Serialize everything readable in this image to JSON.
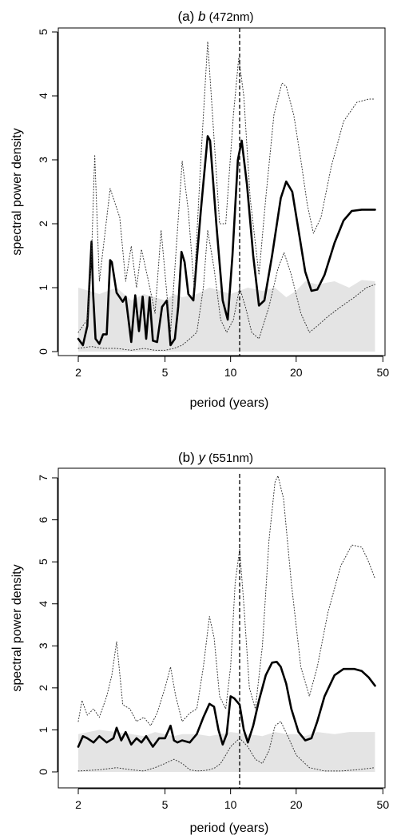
{
  "chart_data": [
    {
      "type": "line",
      "title_prefix": "(a) ",
      "title_var": "b",
      "title_suffix": " (472nm)",
      "xlabel": "period (years)",
      "ylabel": "spectral power density",
      "x_scale": "log",
      "xlim": [
        2,
        47
      ],
      "ylim": [
        0,
        5
      ],
      "x_ticks": [
        2,
        5,
        10,
        20,
        50
      ],
      "x_tick_labels": [
        "2",
        "5",
        "10",
        "20",
        "50"
      ],
      "y_ticks": [
        0,
        1,
        2,
        3,
        4,
        5
      ],
      "y_tick_labels": [
        "0",
        "1",
        "2",
        "3",
        "4",
        "5"
      ],
      "vline_x": 11,
      "series": [
        {
          "style": "solid",
          "x": [
            2.0,
            2.1,
            2.2,
            2.3,
            2.34,
            2.4,
            2.5,
            2.6,
            2.7,
            2.8,
            2.85,
            3.0,
            3.2,
            3.3,
            3.5,
            3.65,
            3.8,
            3.95,
            4.1,
            4.25,
            4.4,
            4.6,
            4.85,
            5.1,
            5.3,
            5.55,
            5.75,
            5.95,
            6.15,
            6.4,
            6.75,
            7.3,
            7.85,
            8.05,
            8.6,
            9.2,
            9.7,
            10.2,
            10.8,
            11.25,
            11.9,
            12.7,
            13.5,
            14.3,
            15.5,
            17.0,
            18.0,
            19.2,
            20.5,
            22.0,
            23.5,
            25.0,
            27.0,
            30.0,
            33.0,
            36.0,
            40.0,
            43.0,
            46.0
          ],
          "y": [
            0.2,
            0.1,
            0.4,
            1.72,
            0.9,
            0.2,
            0.12,
            0.27,
            0.27,
            1.43,
            1.4,
            0.92,
            0.78,
            0.86,
            0.15,
            0.88,
            0.32,
            0.86,
            0.2,
            0.85,
            0.17,
            0.15,
            0.7,
            0.8,
            0.1,
            0.2,
            0.7,
            1.56,
            1.4,
            0.9,
            0.8,
            2.2,
            3.37,
            3.3,
            2.0,
            0.8,
            0.5,
            1.5,
            3.0,
            3.3,
            2.6,
            1.5,
            0.72,
            0.8,
            1.5,
            2.4,
            2.66,
            2.5,
            1.9,
            1.25,
            0.95,
            0.97,
            1.2,
            1.7,
            2.05,
            2.2,
            2.22,
            2.22,
            2.22
          ]
        },
        {
          "style": "dotted-upper",
          "x": [
            2.0,
            2.2,
            2.3,
            2.38,
            2.5,
            2.8,
            3.1,
            3.3,
            3.5,
            3.7,
            3.9,
            4.2,
            4.5,
            4.8,
            5.1,
            5.3,
            5.6,
            6.0,
            6.4,
            6.8,
            7.3,
            7.85,
            8.3,
            8.9,
            9.5,
            10.3,
            10.9,
            11.5,
            12.3,
            13.5,
            14.5,
            15.8,
            17.2,
            18.0,
            19.5,
            21.0,
            22.5,
            24.0,
            26.0,
            29.0,
            33.0,
            38.0,
            43.0,
            46.0
          ],
          "y": [
            0.3,
            0.5,
            1.5,
            3.08,
            1.1,
            2.55,
            2.1,
            1.1,
            1.65,
            1.0,
            1.6,
            1.1,
            0.6,
            1.9,
            0.9,
            0.3,
            1.5,
            2.98,
            2.2,
            1.0,
            3.0,
            4.85,
            3.6,
            2.0,
            2.0,
            3.7,
            4.6,
            4.0,
            2.4,
            1.2,
            2.4,
            3.7,
            4.2,
            4.15,
            3.7,
            3.0,
            2.3,
            1.85,
            2.1,
            2.9,
            3.6,
            3.9,
            3.95,
            3.95
          ]
        },
        {
          "style": "dotted-lower",
          "x": [
            2.0,
            2.3,
            2.6,
            3.0,
            3.5,
            4.0,
            4.5,
            5.0,
            5.5,
            6.0,
            6.5,
            7.0,
            7.5,
            7.85,
            8.4,
            9.0,
            9.6,
            10.3,
            11.0,
            11.7,
            12.5,
            13.5,
            15.0,
            16.5,
            17.6,
            19.0,
            21.0,
            23.0,
            25.0,
            28.0,
            32.0,
            37.0,
            42.0,
            46.0
          ],
          "y": [
            0.05,
            0.08,
            0.05,
            0.05,
            0.02,
            0.05,
            0.02,
            0.02,
            0.05,
            0.1,
            0.2,
            0.3,
            1.0,
            1.9,
            1.3,
            0.5,
            0.3,
            0.5,
            1.0,
            0.7,
            0.3,
            0.2,
            0.7,
            1.3,
            1.55,
            1.2,
            0.6,
            0.3,
            0.4,
            0.55,
            0.7,
            0.85,
            1.0,
            1.05
          ]
        }
      ],
      "band": {
        "x": [
          2.0,
          2.5,
          3.0,
          3.5,
          4.0,
          4.5,
          5.0,
          5.5,
          6.0,
          7.0,
          8.0,
          9.0,
          10.0,
          12.0,
          14.0,
          16.0,
          18.0,
          20.0,
          22.0,
          25.0,
          30.0,
          35.0,
          40.0,
          46.0
        ],
        "y": [
          1.0,
          0.9,
          1.0,
          0.8,
          0.9,
          0.85,
          0.8,
          0.9,
          0.85,
          0.9,
          1.0,
          0.95,
          0.9,
          1.0,
          0.95,
          1.0,
          0.85,
          0.95,
          1.1,
          1.05,
          1.1,
          1.0,
          1.12,
          1.1
        ]
      }
    },
    {
      "type": "line",
      "title_prefix": "(b) ",
      "title_var": "y",
      "title_suffix": " (551nm)",
      "xlabel": "period (years)",
      "ylabel": "spectral power density",
      "x_scale": "log",
      "xlim": [
        2,
        47
      ],
      "ylim": [
        0,
        7
      ],
      "x_ticks": [
        2,
        5,
        10,
        20,
        50
      ],
      "x_tick_labels": [
        "2",
        "5",
        "10",
        "20",
        "50"
      ],
      "y_ticks": [
        0,
        1,
        2,
        3,
        4,
        5,
        6,
        7
      ],
      "y_tick_labels": [
        "0",
        "1",
        "2",
        "3",
        "4",
        "5",
        "6",
        "7"
      ],
      "vline_x": 11,
      "series": [
        {
          "style": "solid",
          "x": [
            2.0,
            2.1,
            2.2,
            2.35,
            2.5,
            2.7,
            2.9,
            3.0,
            3.15,
            3.3,
            3.5,
            3.7,
            3.9,
            4.1,
            4.4,
            4.7,
            5.0,
            5.3,
            5.5,
            5.7,
            6.0,
            6.5,
            7.0,
            7.5,
            8.0,
            8.4,
            8.8,
            9.2,
            9.6,
            10.0,
            10.4,
            11.0,
            11.5,
            12.0,
            12.7,
            13.5,
            14.5,
            15.5,
            16.3,
            17.0,
            18.0,
            19.0,
            20.5,
            22.0,
            23.5,
            25.0,
            27.0,
            30.0,
            33.0,
            37.0,
            40.0,
            43.0,
            46.0
          ],
          "y": [
            0.6,
            0.85,
            0.8,
            0.7,
            0.85,
            0.7,
            0.8,
            1.05,
            0.75,
            0.95,
            0.65,
            0.8,
            0.7,
            0.85,
            0.6,
            0.8,
            0.8,
            1.1,
            0.75,
            0.7,
            0.75,
            0.7,
            0.9,
            1.3,
            1.62,
            1.55,
            1.0,
            0.65,
            0.9,
            1.8,
            1.75,
            1.6,
            1.0,
            0.7,
            1.1,
            1.7,
            2.3,
            2.6,
            2.62,
            2.5,
            2.1,
            1.5,
            0.95,
            0.75,
            0.8,
            1.2,
            1.8,
            2.3,
            2.45,
            2.45,
            2.4,
            2.25,
            2.05
          ]
        },
        {
          "style": "dotted-upper",
          "x": [
            2.0,
            2.08,
            2.2,
            2.35,
            2.5,
            2.7,
            2.85,
            3.0,
            3.2,
            3.45,
            3.7,
            4.0,
            4.3,
            4.6,
            5.0,
            5.3,
            5.6,
            6.0,
            6.5,
            7.0,
            7.5,
            8.0,
            8.4,
            8.9,
            9.5,
            10.0,
            10.5,
            11.0,
            11.5,
            12.2,
            13.0,
            14.0,
            15.0,
            16.0,
            16.5,
            17.5,
            19.0,
            21.0,
            23.0,
            25.0,
            28.0,
            32.0,
            36.0,
            40.0,
            43.0,
            46.0
          ],
          "y": [
            1.2,
            1.7,
            1.35,
            1.5,
            1.3,
            1.8,
            2.3,
            3.1,
            1.6,
            1.5,
            1.2,
            1.3,
            1.1,
            1.4,
            2.0,
            2.5,
            1.8,
            1.2,
            1.4,
            1.5,
            2.5,
            3.7,
            3.2,
            1.8,
            1.5,
            2.5,
            4.5,
            5.3,
            4.0,
            2.0,
            1.5,
            3.0,
            5.5,
            6.9,
            7.05,
            6.5,
            4.5,
            2.5,
            1.8,
            2.5,
            3.8,
            4.9,
            5.4,
            5.35,
            5.0,
            4.6
          ]
        },
        {
          "style": "dotted-lower",
          "x": [
            2.0,
            2.5,
            3.0,
            3.5,
            4.0,
            4.5,
            5.0,
            5.5,
            6.0,
            6.5,
            7.0,
            7.5,
            8.0,
            8.5,
            9.0,
            9.5,
            10.0,
            11.0,
            12.0,
            13.0,
            14.0,
            15.0,
            16.0,
            17.0,
            18.5,
            20.0,
            23.0,
            27.0,
            32.0,
            38.0,
            46.0
          ],
          "y": [
            0.02,
            0.05,
            0.1,
            0.05,
            0.02,
            0.1,
            0.2,
            0.3,
            0.2,
            0.05,
            0.02,
            0.03,
            0.05,
            0.1,
            0.2,
            0.4,
            0.6,
            0.8,
            0.6,
            0.3,
            0.2,
            0.5,
            1.1,
            1.2,
            0.8,
            0.4,
            0.1,
            0.02,
            0.02,
            0.05,
            0.1
          ]
        }
      ],
      "band": {
        "x": [
          2.0,
          2.5,
          3.0,
          3.5,
          4.0,
          4.5,
          5.0,
          5.5,
          6.0,
          7.0,
          8.0,
          9.0,
          10.0,
          12.0,
          14.0,
          16.0,
          18.0,
          20.0,
          22.0,
          25.0,
          30.0,
          35.0,
          40.0,
          46.0
        ],
        "y": [
          0.9,
          1.0,
          0.95,
          0.9,
          0.85,
          0.95,
          0.9,
          0.85,
          0.9,
          0.9,
          0.85,
          0.9,
          0.95,
          0.9,
          0.85,
          0.95,
          0.9,
          0.9,
          0.85,
          0.95,
          0.9,
          0.95,
          0.95,
          0.95
        ]
      }
    }
  ]
}
